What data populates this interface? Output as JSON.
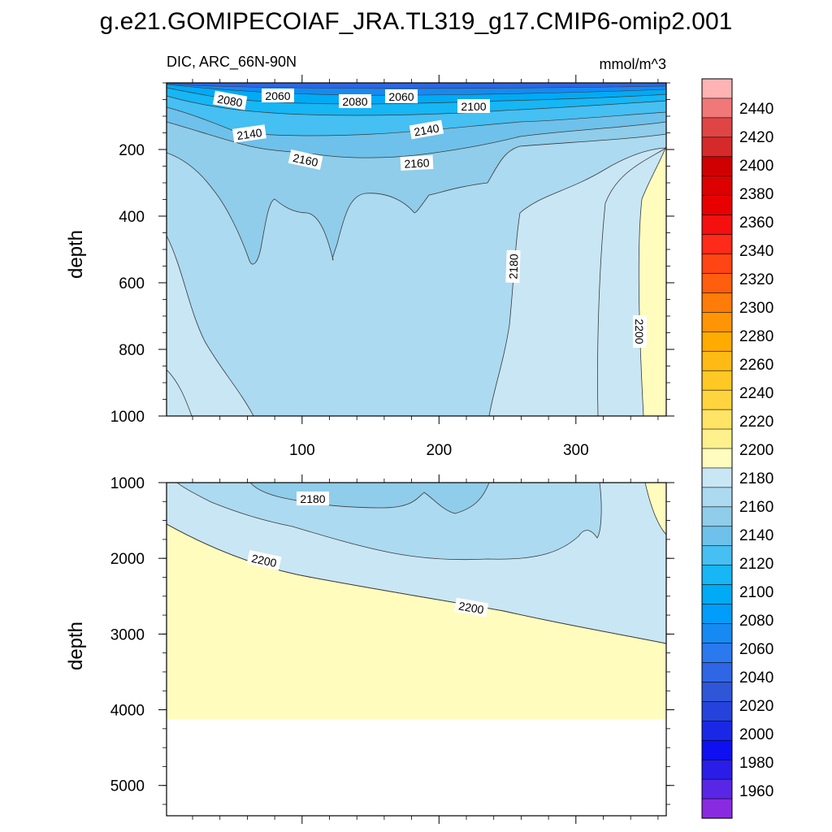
{
  "title": "g.e21.GOMIPECOIAF_JRA.TL319_g17.CMIP6-omip2.001",
  "chart_data": {
    "type": "heatmap",
    "subtitle_left": "DIC, ARC_66N-90N",
    "subtitle_right": "mmol/m^3",
    "ylabel": "depth",
    "x_ticks": [
      "100",
      "200",
      "300"
    ],
    "xlim": [
      1,
      366
    ],
    "panels": [
      {
        "ylim": [
          0,
          1000
        ],
        "y_ticks": [
          "200",
          "400",
          "600",
          "800",
          "1000"
        ],
        "contour_labels": [
          "2080",
          "2060",
          "2080",
          "2060",
          "2100",
          "2140",
          "2140",
          "2160",
          "2160",
          "2180",
          "2200"
        ]
      },
      {
        "ylim": [
          1000,
          5400
        ],
        "y_ticks": [
          "1000",
          "2000",
          "3000",
          "4000",
          "5000"
        ],
        "contour_labels": [
          "2180",
          "2200",
          "2200"
        ],
        "seafloor_depth": 4110
      }
    ],
    "colorbar": {
      "labels": [
        "2440",
        "2420",
        "2400",
        "2380",
        "2360",
        "2340",
        "2320",
        "2300",
        "2280",
        "2260",
        "2240",
        "2220",
        "2200",
        "2180",
        "2160",
        "2140",
        "2120",
        "2100",
        "2080",
        "2060",
        "2040",
        "2020",
        "2000",
        "1980",
        "1960"
      ],
      "colors": [
        "#ffb3b3",
        "#f07878",
        "#e04545",
        "#d62a2a",
        "#d00000",
        "#dc0000",
        "#e80000",
        "#f51010",
        "#ff2a1a",
        "#ff4513",
        "#ff5e0e",
        "#ff7b0a",
        "#ff9505",
        "#ffab00",
        "#ffba15",
        "#ffc825",
        "#ffd43e",
        "#ffe466",
        "#fff08e",
        "#fffcbd",
        "#c9e6f5",
        "#acdaf0",
        "#8fcdea",
        "#6ec1ea",
        "#46bff2",
        "#17b6f4",
        "#00aaf5",
        "#009dfa",
        "#168af2",
        "#2a79ee",
        "#2e66e5",
        "#2f56d6",
        "#2543dc",
        "#1a28e6",
        "#0e10f2",
        "#2a1de8",
        "#5a26e6",
        "#8a2ae0"
      ]
    }
  }
}
